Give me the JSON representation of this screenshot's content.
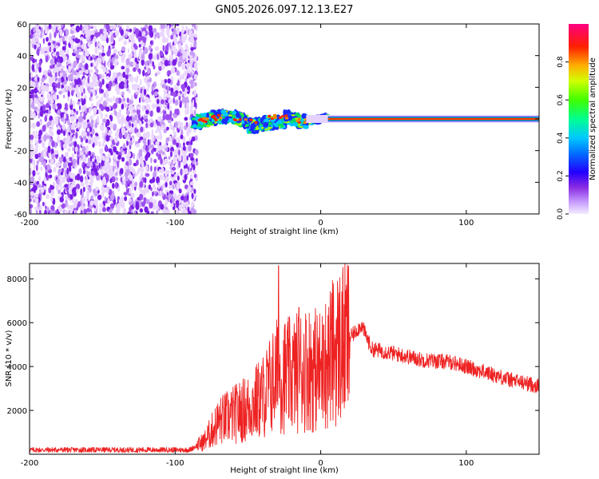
{
  "title": "GN05.2026.097.12.13.E27",
  "chart_data": [
    {
      "type": "heatmap",
      "xlabel": "Height of straight line (km)",
      "ylabel": "Frequency (Hz)",
      "xlim": [
        -200,
        150
      ],
      "ylim": [
        -60,
        60
      ],
      "xticks": [
        -200,
        -100,
        0,
        100
      ],
      "yticks": [
        -60,
        -40,
        -20,
        0,
        20,
        40,
        60
      ],
      "colorbar": {
        "label": "Normalized spectral amplitude",
        "range": [
          0,
          1
        ],
        "ticks": [
          0.0,
          0.2,
          0.4,
          0.6,
          0.8
        ],
        "tick_labels": [
          "0.0",
          "0.2",
          "0.4",
          "0.6",
          "0.8"
        ],
        "colormap": [
          "#ffffff",
          "#e0c0ff",
          "#8a2be2",
          "#4b00ff",
          "#0000ff",
          "#00bfff",
          "#00ff80",
          "#80ff00",
          "#ffff00",
          "#ff8000",
          "#ff0000",
          "#ff0080"
        ]
      },
      "features": {
        "noise_region_x": [
          -200,
          -87
        ],
        "signal_band_hz": 0
      }
    },
    {
      "type": "line",
      "xlabel": "Height of straight line (km)",
      "ylabel": "SNR (10 * v/v)",
      "xlim": [
        -200,
        150
      ],
      "ylim": [
        0,
        8700
      ],
      "xticks": [
        -200,
        -100,
        0,
        100
      ],
      "yticks": [
        2000,
        4000,
        6000,
        8000
      ],
      "color": "#ee2222",
      "envelope": {
        "x": [
          -200,
          -90,
          -80,
          -70,
          -60,
          -50,
          -40,
          -30,
          -20,
          -10,
          0,
          10,
          20,
          28,
          35,
          50,
          70,
          90,
          110,
          130,
          150
        ],
        "y": [
          200,
          200,
          600,
          1500,
          1800,
          2100,
          2600,
          3600,
          3600,
          4000,
          3800,
          4800,
          5300,
          5900,
          4800,
          4600,
          4300,
          4200,
          3800,
          3400,
          3100
        ]
      },
      "spikes": [
        [
          -29,
          8600
        ],
        [
          -15,
          6700
        ],
        [
          -10,
          6100
        ],
        [
          2,
          5900
        ]
      ]
    }
  ]
}
